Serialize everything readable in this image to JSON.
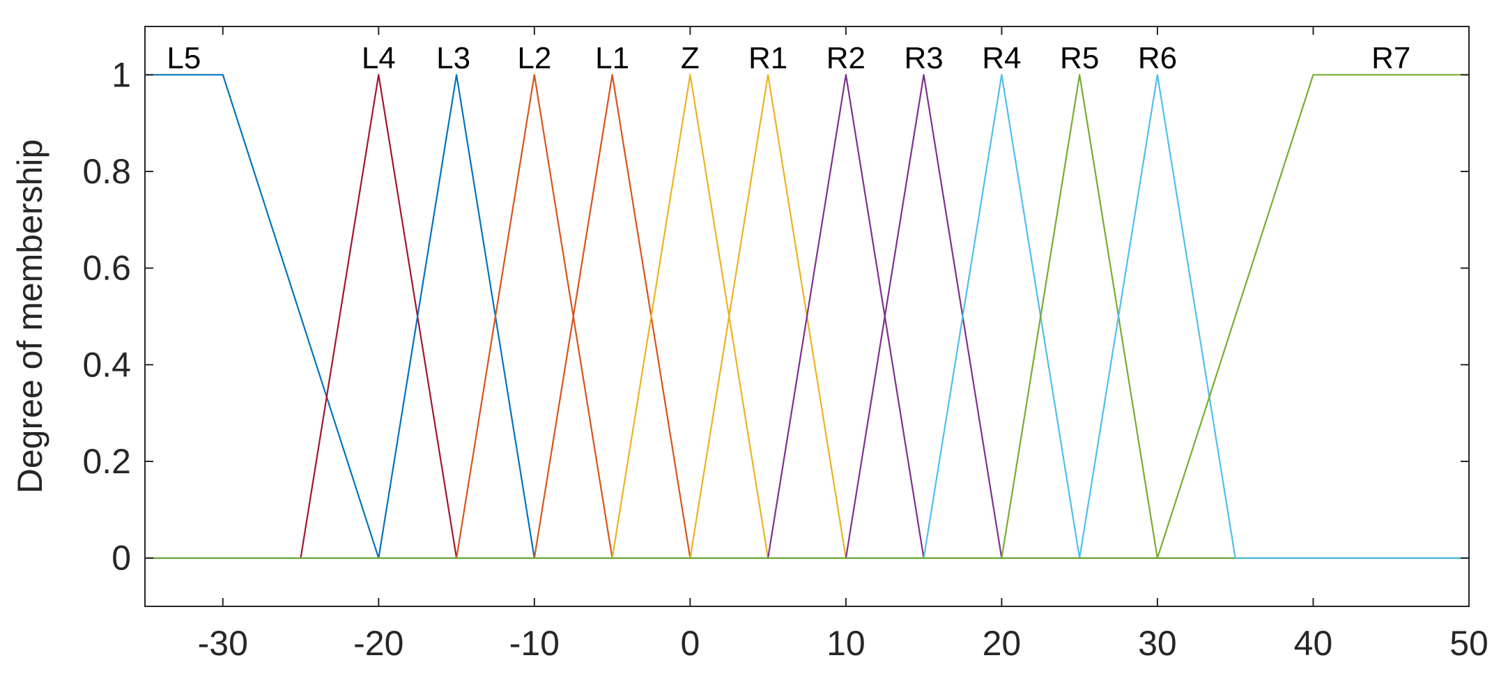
{
  "chart_data": {
    "type": "line",
    "title": "",
    "xlabel": "",
    "ylabel": "Degree of membership",
    "xlim": [
      -35,
      50
    ],
    "ylim": [
      -0.1,
      1.1
    ],
    "xticks": [
      "-30",
      "-20",
      "-10",
      "0",
      "10",
      "20",
      "30",
      "40",
      "50"
    ],
    "yticks": [
      "0",
      "0.2",
      "0.4",
      "0.6",
      "0.8",
      "1"
    ],
    "grid": false,
    "legend": "none",
    "series": [
      {
        "name": "L5",
        "color": "#0072BD",
        "label_x": -32.5,
        "points": [
          [
            -35,
            1
          ],
          [
            -30,
            1
          ],
          [
            -20,
            0
          ],
          [
            50,
            0
          ]
        ]
      },
      {
        "name": "L4",
        "color": "#A2142F",
        "label_x": -20,
        "points": [
          [
            -35,
            0
          ],
          [
            -25,
            0
          ],
          [
            -20,
            1
          ],
          [
            -15,
            0
          ],
          [
            50,
            0
          ]
        ]
      },
      {
        "name": "L3",
        "color": "#0072BD",
        "label_x": -15.2,
        "points": [
          [
            -35,
            0
          ],
          [
            -20,
            0
          ],
          [
            -15,
            1
          ],
          [
            -10,
            0
          ],
          [
            50,
            0
          ]
        ]
      },
      {
        "name": "L2",
        "color": "#D95319",
        "label_x": -10,
        "points": [
          [
            -35,
            0
          ],
          [
            -15,
            0
          ],
          [
            -10,
            1
          ],
          [
            -5,
            0
          ],
          [
            50,
            0
          ]
        ]
      },
      {
        "name": "L1",
        "color": "#D95319",
        "label_x": -5,
        "points": [
          [
            -35,
            0
          ],
          [
            -10,
            0
          ],
          [
            -5,
            1
          ],
          [
            0,
            0
          ],
          [
            50,
            0
          ]
        ]
      },
      {
        "name": "Z",
        "color": "#EDB120",
        "label_x": 0,
        "points": [
          [
            -35,
            0
          ],
          [
            -5,
            0
          ],
          [
            0,
            1
          ],
          [
            5,
            0
          ],
          [
            50,
            0
          ]
        ]
      },
      {
        "name": "R1",
        "color": "#EDB120",
        "label_x": 5,
        "points": [
          [
            -35,
            0
          ],
          [
            0,
            0
          ],
          [
            5,
            1
          ],
          [
            10,
            0
          ],
          [
            50,
            0
          ]
        ]
      },
      {
        "name": "R2",
        "color": "#7E2F8E",
        "label_x": 10,
        "points": [
          [
            -35,
            0
          ],
          [
            5,
            0
          ],
          [
            10,
            1
          ],
          [
            15,
            0
          ],
          [
            50,
            0
          ]
        ]
      },
      {
        "name": "R3",
        "color": "#7E2F8E",
        "label_x": 15,
        "points": [
          [
            -35,
            0
          ],
          [
            10,
            0
          ],
          [
            15,
            1
          ],
          [
            20,
            0
          ],
          [
            50,
            0
          ]
        ]
      },
      {
        "name": "R4",
        "color": "#4DBEEE",
        "label_x": 20,
        "points": [
          [
            -35,
            0
          ],
          [
            15,
            0
          ],
          [
            20,
            1
          ],
          [
            25,
            0
          ],
          [
            50,
            0
          ]
        ]
      },
      {
        "name": "R5",
        "color": "#77AC30",
        "label_x": 25,
        "points": [
          [
            -35,
            0
          ],
          [
            20,
            0
          ],
          [
            25,
            1
          ],
          [
            30,
            0
          ],
          [
            50,
            0
          ]
        ]
      },
      {
        "name": "R6",
        "color": "#4DBEEE",
        "label_x": 30,
        "points": [
          [
            -35,
            0
          ],
          [
            25,
            0
          ],
          [
            30,
            1
          ],
          [
            35,
            0
          ],
          [
            50,
            0
          ]
        ]
      },
      {
        "name": "R7",
        "color": "#77AC30",
        "label_x": 45,
        "points": [
          [
            -35,
            0
          ],
          [
            30,
            0
          ],
          [
            40,
            1
          ],
          [
            50,
            1
          ]
        ]
      }
    ]
  }
}
